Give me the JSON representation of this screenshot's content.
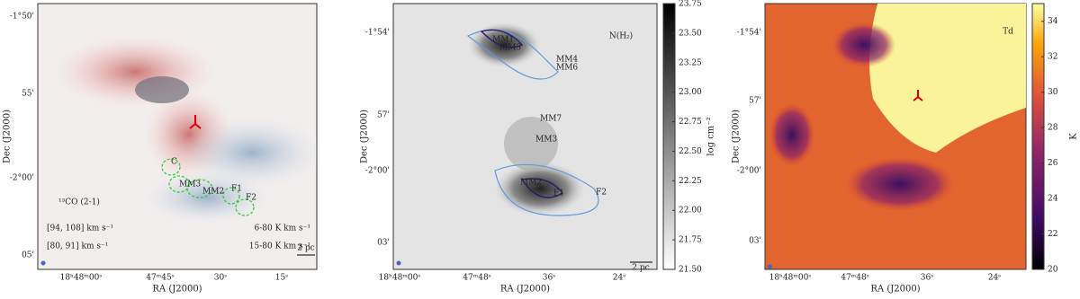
{
  "panels": [
    {
      "y_axis_label": "Dec (J2000)",
      "x_axis_label": "RA (J2000)",
      "yticklabels": [
        "-1°50'",
        "55'",
        "-2°00'",
        "05'"
      ],
      "xticklabels": [
        "18ʰ48ᵐ00ˢ",
        "47ᵐ45ˢ",
        "30ˢ",
        "15ˢ"
      ],
      "title": "¹³CO (2-1)",
      "legend": {
        "red_range": "[94, 108] km s⁻¹",
        "blue_range": "[80, 91] km s⁻¹",
        "red_levels": "6-80 K km s⁻¹",
        "blue_levels": "15-80 K km s⁻¹"
      },
      "scale_bar": "2 pc",
      "sources": [
        "C",
        "MM3",
        "MM2",
        "F1",
        "F2"
      ]
    },
    {
      "y_axis_label": "Dec (J2000)",
      "x_axis_label": "RA (J2000)",
      "yticklabels": [
        "-1°54'",
        "57'",
        "-2°00'",
        "03'"
      ],
      "xticklabels": [
        "18ʰ48ᵐ00ˢ",
        "47ᵐ48ˢ",
        "36ˢ",
        "24ˢ"
      ],
      "title": "N(H₂)",
      "scale_bar": "2 pc",
      "sources": [
        "MM1",
        "MM5",
        "MM4",
        "MM6",
        "MM7",
        "MM3",
        "MM2",
        "F1",
        "F2"
      ],
      "colorbar": {
        "label": "log cm⁻²",
        "lim": [
          21.5,
          23.75
        ],
        "ticks": [
          {
            "value": 21.5,
            "label": "21.50"
          },
          21.75,
          {
            "value": 22.0,
            "label": "22.00"
          },
          22.25,
          {
            "value": 22.5,
            "label": "22.50"
          },
          22.75,
          {
            "value": 23.0,
            "label": "23.00"
          },
          23.25,
          {
            "value": 23.5,
            "label": "23.50"
          },
          23.75
        ]
      }
    },
    {
      "y_axis_label": "Dec (J2000)",
      "x_axis_label": "RA (J2000)",
      "yticklabels": [
        "-1°54'",
        "57'",
        "-2°00'",
        "03'"
      ],
      "xticklabels": [
        "18ʰ48ᵐ00ˢ",
        "47ᵐ48ˢ",
        "36ˢ",
        "24ˢ"
      ],
      "title": "Td",
      "colorbar": {
        "label": "K",
        "lim": [
          20,
          35
        ],
        "ticks": [
          20,
          22,
          24,
          26,
          28,
          30,
          32,
          34
        ]
      }
    }
  ]
}
